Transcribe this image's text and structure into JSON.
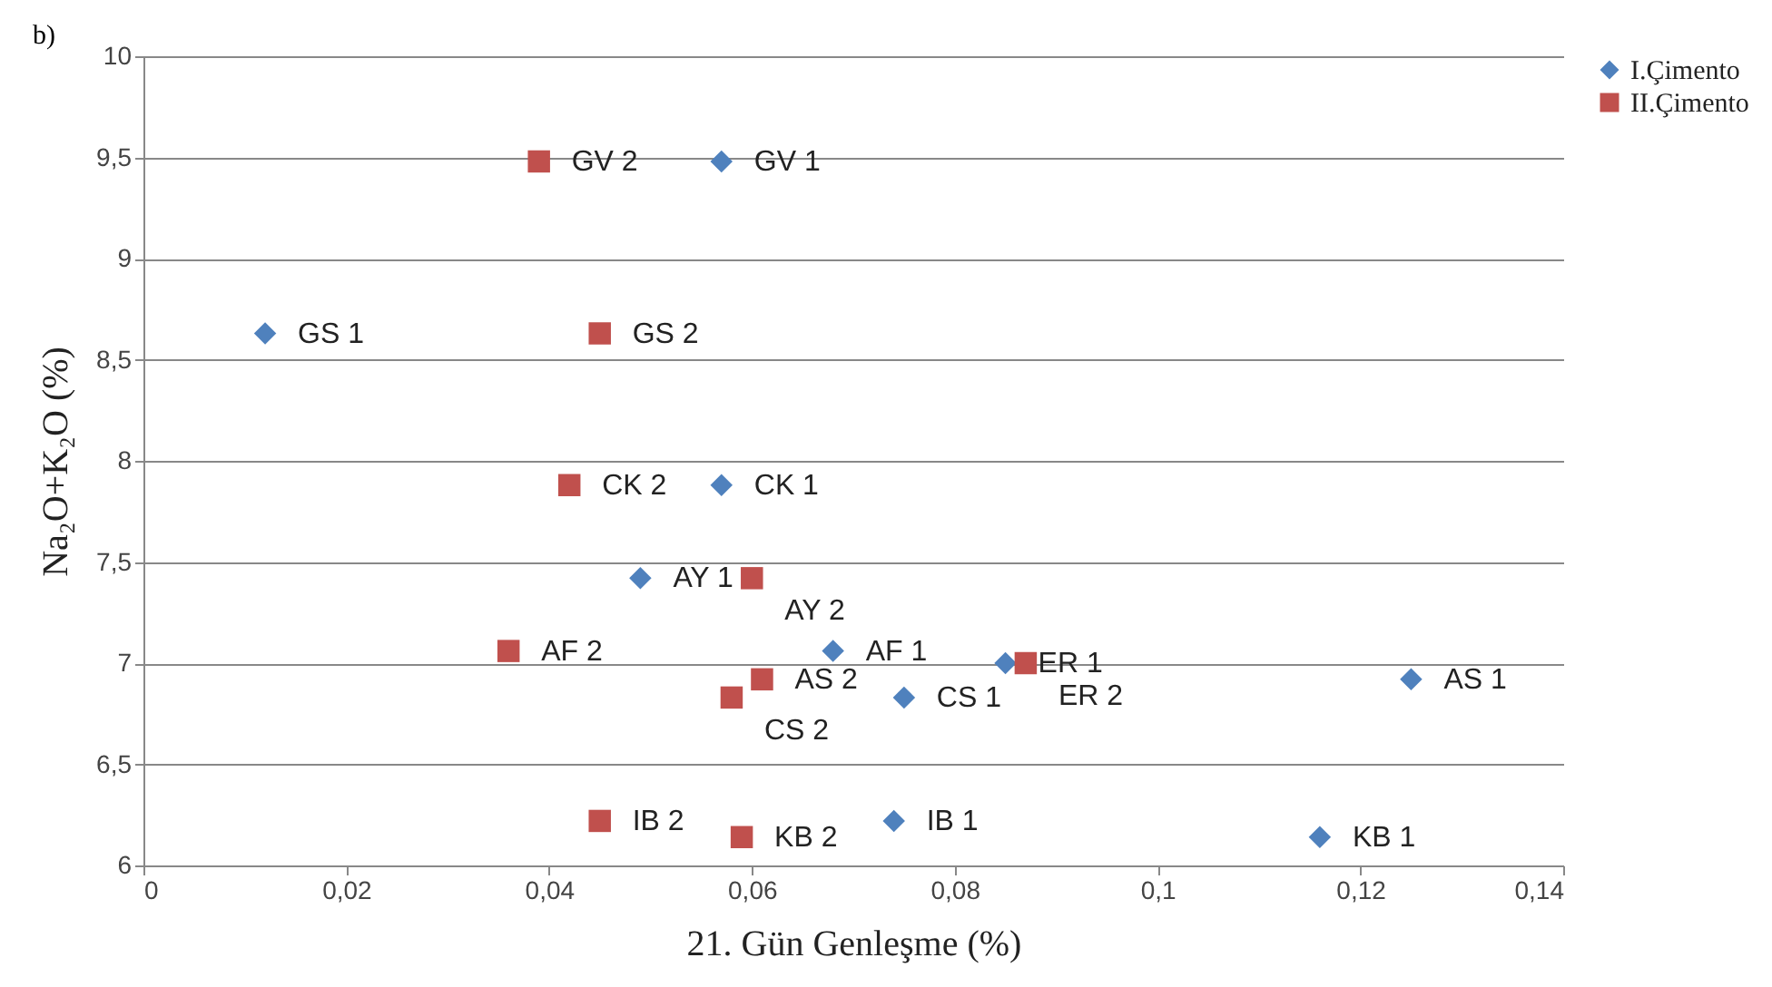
{
  "chart_data": {
    "type": "scatter",
    "xlabel": "21. Gün Genleşme (%)",
    "ylabel": "Na₂O+K₂O (%)",
    "xlim": [
      0,
      0.14
    ],
    "xticks": [
      {
        "value": 0,
        "label": "0"
      },
      {
        "value": 0.02,
        "label": "0,02"
      },
      {
        "value": 0.04,
        "label": "0,04"
      },
      {
        "value": 0.06,
        "label": "0,06"
      },
      {
        "value": 0.08,
        "label": "0,08"
      },
      {
        "value": 0.1,
        "label": "0,1"
      },
      {
        "value": 0.12,
        "label": "0,12"
      },
      {
        "value": 0.14,
        "label": "0,14"
      }
    ],
    "ylim": [
      6,
      10
    ],
    "yticks": [
      {
        "value": 6,
        "label": "6"
      },
      {
        "value": 6.5,
        "label": "6,5"
      },
      {
        "value": 7,
        "label": "7"
      },
      {
        "value": 7.5,
        "label": "7,5"
      },
      {
        "value": 8,
        "label": "8"
      },
      {
        "value": 8.5,
        "label": "8,5"
      },
      {
        "value": 9,
        "label": "9"
      },
      {
        "value": 9.5,
        "label": "9,5"
      },
      {
        "value": 10,
        "label": "10"
      }
    ],
    "grid": "y",
    "legend": "right",
    "series": [
      {
        "name": "I.Çimento",
        "color": "#4f81bd",
        "marker": "diamond",
        "x": [
          0.012,
          0.057,
          0.057,
          0.049,
          0.068,
          0.075,
          0.085,
          0.125,
          0.074,
          0.116
        ],
        "values": [
          8.63,
          9.48,
          7.88,
          7.42,
          7.06,
          6.83,
          7.0,
          6.92,
          6.22,
          6.14
        ]
      },
      {
        "name": "II.Çimento",
        "color": "#c0504d",
        "marker": "square",
        "x": [
          0.039,
          0.045,
          0.042,
          0.06,
          0.036,
          0.061,
          0.058,
          0.087,
          0.045,
          0.059
        ],
        "values": [
          9.48,
          8.63,
          7.88,
          7.42,
          7.06,
          6.92,
          6.83,
          7.0,
          6.22,
          6.14
        ]
      }
    ],
    "annotations": [
      "b)",
      {
        "text": "GS 1",
        "x": 0.012,
        "y": 8.63
      },
      {
        "text": "GV 1",
        "x": 0.057,
        "y": 9.48
      },
      {
        "text": "CK 1",
        "x": 0.057,
        "y": 7.88
      },
      {
        "text": "AY 1",
        "x": 0.049,
        "y": 7.42
      },
      {
        "text": "AF 1",
        "x": 0.068,
        "y": 7.06
      },
      {
        "text": "CS 1",
        "x": 0.075,
        "y": 6.83
      },
      {
        "text": "ER 1",
        "x": 0.085,
        "y": 7.0
      },
      {
        "text": "AS 1",
        "x": 0.125,
        "y": 6.92
      },
      {
        "text": "IB 1",
        "x": 0.074,
        "y": 6.22
      },
      {
        "text": "KB 1",
        "x": 0.116,
        "y": 6.14
      },
      {
        "text": "GV 2",
        "x": 0.039,
        "y": 9.48
      },
      {
        "text": "GS 2",
        "x": 0.045,
        "y": 8.63
      },
      {
        "text": "CK 2",
        "x": 0.042,
        "y": 7.88
      },
      {
        "text": "AY 2",
        "x": 0.06,
        "y": 7.42
      },
      {
        "text": "AF 2",
        "x": 0.036,
        "y": 7.06
      },
      {
        "text": "AS 2",
        "x": 0.061,
        "y": 6.92
      },
      {
        "text": "CS 2",
        "x": 0.058,
        "y": 6.83
      },
      {
        "text": "ER 2",
        "x": 0.087,
        "y": 7.0
      },
      {
        "text": "IB 2",
        "x": 0.045,
        "y": 6.22
      },
      {
        "text": "KB 2",
        "x": 0.059,
        "y": 6.14
      }
    ]
  }
}
